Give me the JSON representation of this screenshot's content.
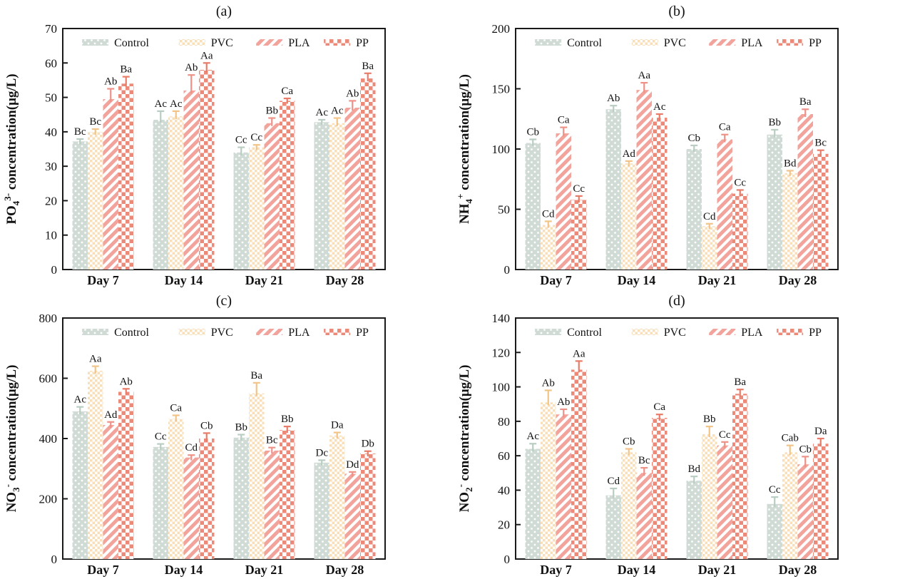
{
  "figure": {
    "background": "#ffffff",
    "text_color": "#111111",
    "axis_color": "#1a1a1a"
  },
  "series_styles": [
    {
      "name": "Control",
      "pattern": "dots",
      "fill": "#cfdbd4",
      "error_color": "#b9cdc2"
    },
    {
      "name": "PVC",
      "pattern": "checker-small",
      "fill": "#f8dfb9",
      "error_color": "#f2c488"
    },
    {
      "name": "PLA",
      "pattern": "diagonal",
      "fill": "#f2a39b",
      "error_color": "#ee9288"
    },
    {
      "name": "PP",
      "pattern": "checker-large",
      "fill": "#ec8a7a",
      "error_color": "#e87c69"
    }
  ],
  "chart_data": [
    {
      "type": "bar",
      "panel_id": "a",
      "title": "(a)",
      "ylabel": {
        "prefix": "PO",
        "sub": "4",
        "sup": "3-",
        "suffix": " concentration(μg/L)"
      },
      "ylim": [
        0,
        70
      ],
      "ytick_step": 10,
      "grid": false,
      "legend_position": "top-inside",
      "categories": [
        "Day 7",
        "Day 14",
        "Day 21",
        "Day 28"
      ],
      "series": [
        {
          "name": "Control",
          "values": [
            37.2,
            43.5,
            34.0,
            42.8
          ],
          "errors": [
            0.7,
            2.5,
            1.5,
            0.7
          ],
          "sig_labels": [
            "Bc",
            "Ac",
            "Cc",
            "Ac"
          ]
        },
        {
          "name": "PVC",
          "values": [
            40.0,
            44.5,
            35.5,
            42.5
          ],
          "errors": [
            0.8,
            1.5,
            0.7,
            1.5
          ],
          "sig_labels": [
            "Bc",
            "Ac",
            "Cc",
            "Ac"
          ]
        },
        {
          "name": "PLA",
          "values": [
            49.5,
            52.0,
            42.5,
            47.0
          ],
          "errors": [
            3.0,
            4.5,
            1.5,
            2.0
          ],
          "sig_labels": [
            "Ab",
            "Ab",
            "Bb",
            "Ab"
          ]
        },
        {
          "name": "PP",
          "values": [
            54.0,
            58.0,
            49.0,
            55.5
          ],
          "errors": [
            2.0,
            2.0,
            0.7,
            1.5
          ],
          "sig_labels": [
            "Ba",
            "Aa",
            "Ca",
            "Ba"
          ]
        }
      ]
    },
    {
      "type": "bar",
      "panel_id": "b",
      "title": "(b)",
      "ylabel": {
        "prefix": "NH",
        "sub": "4",
        "sup": "+",
        "suffix": " concentration(μg/L)"
      },
      "ylim": [
        0,
        200
      ],
      "ytick_step": 50,
      "grid": false,
      "legend_position": "top-inside",
      "categories": [
        "Day 7",
        "Day 14",
        "Day 21",
        "Day 28"
      ],
      "series": [
        {
          "name": "Control",
          "values": [
            105,
            133,
            100,
            112
          ],
          "errors": [
            3,
            3,
            3,
            4
          ],
          "sig_labels": [
            "Cb",
            "Ab",
            "Cb",
            "Bb"
          ]
        },
        {
          "name": "PVC",
          "values": [
            37,
            88,
            36,
            80
          ],
          "errors": [
            3,
            2,
            2,
            2
          ],
          "sig_labels": [
            "Cd",
            "Ad",
            "Cd",
            "Bd"
          ]
        },
        {
          "name": "PLA",
          "values": [
            113,
            149,
            108,
            129
          ],
          "errors": [
            5,
            6,
            4,
            4
          ],
          "sig_labels": [
            "Ca",
            "Aa",
            "Ca",
            "Ba"
          ]
        },
        {
          "name": "PP",
          "values": [
            58,
            126,
            63,
            96
          ],
          "errors": [
            3,
            3,
            3,
            3
          ],
          "sig_labels": [
            "Cc",
            "Ac",
            "Cc",
            "Bc"
          ]
        }
      ]
    },
    {
      "type": "bar",
      "panel_id": "c",
      "title": "(c)",
      "ylabel": {
        "prefix": "NO",
        "sub": "3",
        "sup": "-",
        "suffix": " concentration(μg/L)"
      },
      "ylim": [
        0,
        800
      ],
      "ytick_step": 200,
      "grid": false,
      "legend_position": "top-inside",
      "categories": [
        "Day 7",
        "Day 14",
        "Day 21",
        "Day 28"
      ],
      "series": [
        {
          "name": "Control",
          "values": [
            490,
            372,
            403,
            320
          ],
          "errors": [
            15,
            10,
            10,
            8
          ],
          "sig_labels": [
            "Ac",
            "Cc",
            "Bb",
            "Dc"
          ]
        },
        {
          "name": "PVC",
          "values": [
            625,
            465,
            550,
            410
          ],
          "errors": [
            15,
            12,
            35,
            10
          ],
          "sig_labels": [
            "Aa",
            "Ca",
            "Ba",
            "Da"
          ]
        },
        {
          "name": "PLA",
          "values": [
            445,
            337,
            360,
            283
          ],
          "errors": [
            10,
            8,
            10,
            6
          ],
          "sig_labels": [
            "Ad",
            "Cd",
            "Bc",
            "Dd"
          ]
        },
        {
          "name": "PP",
          "values": [
            555,
            400,
            428,
            350
          ],
          "errors": [
            10,
            18,
            12,
            8
          ],
          "sig_labels": [
            "Ab",
            "Cb",
            "Bb",
            "Db"
          ]
        }
      ]
    },
    {
      "type": "bar",
      "panel_id": "d",
      "title": "(d)",
      "ylabel": {
        "prefix": "NO",
        "sub": "2",
        "sup": "-",
        "suffix": " concentration(μg/L)"
      },
      "ylim": [
        0,
        140
      ],
      "ytick_step": 20,
      "grid": false,
      "legend_position": "top-inside",
      "categories": [
        "Day 7",
        "Day 14",
        "Day 21",
        "Day 28"
      ],
      "series": [
        {
          "name": "Control",
          "values": [
            64,
            37,
            45.5,
            32
          ],
          "errors": [
            3,
            4,
            2.5,
            4
          ],
          "sig_labels": [
            "Ac",
            "Cd",
            "Bd",
            "Cc"
          ]
        },
        {
          "name": "PVC",
          "values": [
            91,
            62,
            72.5,
            62
          ],
          "errors": [
            7,
            2,
            4.5,
            4
          ],
          "sig_labels": [
            "Ab",
            "Cb",
            "Bb",
            "Cab"
          ]
        },
        {
          "name": "PLA",
          "values": [
            84,
            50,
            66,
            55
          ],
          "errors": [
            3,
            3,
            2,
            4.5
          ],
          "sig_labels": [
            "Ab",
            "Bc",
            "Cc",
            "Cb"
          ]
        },
        {
          "name": "PP",
          "values": [
            110,
            82,
            96,
            67
          ],
          "errors": [
            5,
            2,
            2.5,
            3
          ],
          "sig_labels": [
            "Aa",
            "Ca",
            "Ba",
            "Da"
          ]
        }
      ]
    }
  ]
}
